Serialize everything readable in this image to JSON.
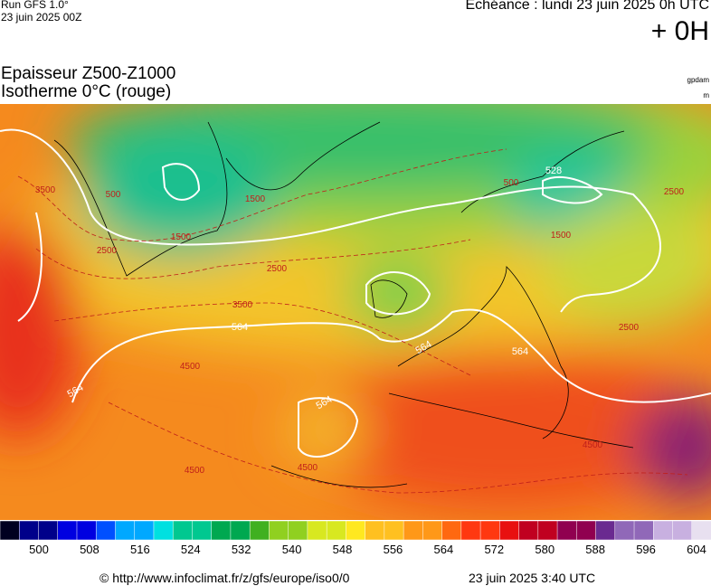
{
  "header": {
    "run": "Run GFS 1.0°",
    "run_date": "23 juin 2025 00Z",
    "valid": "Echéance : lundi 23 juin 2025 0h UTC",
    "step": "+ 0H"
  },
  "title": {
    "line1": "Epaisseur Z500-Z1000",
    "line2": "Isotherme 0°C (rouge)",
    "unit1": "gpdam",
    "unit2": "m"
  },
  "map": {
    "white_labels": [
      528,
      564,
      564,
      564,
      564,
      564
    ],
    "red_labels": [
      500,
      1500,
      1500,
      2500,
      2500,
      3500,
      3500,
      4500,
      4500,
      4500,
      500,
      1500,
      2500,
      2500,
      4500
    ]
  },
  "colorbar": {
    "ticks": [
      500,
      508,
      516,
      524,
      532,
      540,
      548,
      556,
      564,
      572,
      580,
      588,
      596,
      604
    ]
  },
  "footer": {
    "url": "© http://www.infoclimat.fr/z/gfs/europe/iso0/0",
    "date": "23 juin 2025  3:40 UTC"
  }
}
